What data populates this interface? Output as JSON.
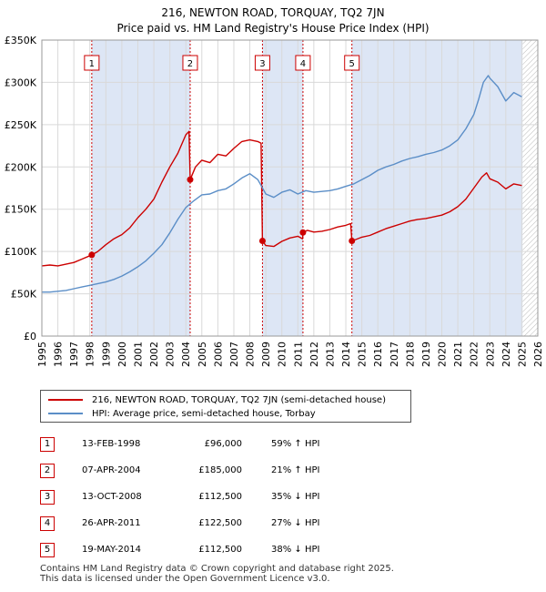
{
  "title_line1": "216, NEWTON ROAD, TORQUAY, TQ2 7JN",
  "title_line2": "Price paid vs. HM Land Registry's House Price Index (HPI)",
  "legend": {
    "series1": "216, NEWTON ROAD, TORQUAY, TQ2 7JN (semi-detached house)",
    "series2": "HPI: Average price, semi-detached house, Torbay"
  },
  "sales": [
    {
      "num": "1",
      "date": "13-FEB-1998",
      "price": "£96,000",
      "hpi": "59% ↑ HPI"
    },
    {
      "num": "2",
      "date": "07-APR-2004",
      "price": "£185,000",
      "hpi": "21% ↑ HPI"
    },
    {
      "num": "3",
      "date": "13-OCT-2008",
      "price": "£112,500",
      "hpi": "35% ↓ HPI"
    },
    {
      "num": "4",
      "date": "26-APR-2011",
      "price": "£122,500",
      "hpi": "27% ↓ HPI"
    },
    {
      "num": "5",
      "date": "19-MAY-2014",
      "price": "£112,500",
      "hpi": "38% ↓ HPI"
    }
  ],
  "footer_line1": "Contains HM Land Registry data © Crown copyright and database right 2025.",
  "footer_line2": "This data is licensed under the Open Government Licence v3.0.",
  "colors": {
    "property_line": "#cc0000",
    "hpi_line": "#5b8ec7",
    "shade": "#dde6f5",
    "grid": "#d9d9d9",
    "marker_border": "#cc0000"
  },
  "chart_data": {
    "type": "line",
    "title": "216, NEWTON ROAD, TORQUAY, TQ2 7JN — Price paid vs. HM Land Registry's House Price Index (HPI)",
    "xlabel": "",
    "ylabel": "",
    "xlim": [
      1995,
      2026
    ],
    "ylim": [
      0,
      350000
    ],
    "x_ticks": [
      1995,
      1996,
      1997,
      1998,
      1999,
      2000,
      2001,
      2002,
      2003,
      2004,
      2005,
      2006,
      2007,
      2008,
      2009,
      2010,
      2011,
      2012,
      2013,
      2014,
      2015,
      2016,
      2017,
      2018,
      2019,
      2020,
      2021,
      2022,
      2023,
      2024,
      2025,
      2026
    ],
    "y_ticks": [
      0,
      50000,
      100000,
      150000,
      200000,
      250000,
      300000,
      350000
    ],
    "y_tick_labels": [
      "£0",
      "£50K",
      "£100K",
      "£150K",
      "£200K",
      "£250K",
      "£300K",
      "£350K"
    ],
    "grid": true,
    "legend_position": "below",
    "shaded_regions": [
      [
        1998.12,
        2004.27
      ],
      [
        2008.79,
        2011.32
      ],
      [
        2014.38,
        2025.05
      ]
    ],
    "future_hatch_from": 2025.05,
    "sale_markers": [
      {
        "label": "1",
        "x": 1998.12,
        "y": 96000
      },
      {
        "label": "2",
        "x": 2004.27,
        "y": 185000
      },
      {
        "label": "3",
        "x": 2008.79,
        "y": 112500
      },
      {
        "label": "4",
        "x": 2011.32,
        "y": 122500
      },
      {
        "label": "5",
        "x": 2014.38,
        "y": 112500
      }
    ],
    "series": [
      {
        "name": "216, NEWTON ROAD, TORQUAY, TQ2 7JN (semi-detached house)",
        "x": [
          1995.0,
          1995.5,
          1996.0,
          1996.5,
          1997.0,
          1997.5,
          1998.0,
          1998.12,
          1998.5,
          1999.0,
          1999.5,
          2000.0,
          2000.5,
          2001.0,
          2001.5,
          2002.0,
          2002.5,
          2003.0,
          2003.5,
          2004.0,
          2004.2,
          2004.27,
          2004.6,
          2005.0,
          2005.5,
          2006.0,
          2006.5,
          2007.0,
          2007.5,
          2008.0,
          2008.5,
          2008.7,
          2008.79,
          2009.0,
          2009.5,
          2010.0,
          2010.5,
          2011.0,
          2011.3,
          2011.32,
          2011.6,
          2012.0,
          2012.5,
          2013.0,
          2013.5,
          2014.0,
          2014.3,
          2014.38,
          2014.6,
          2015.0,
          2015.5,
          2016.0,
          2016.5,
          2017.0,
          2017.5,
          2018.0,
          2018.5,
          2019.0,
          2019.5,
          2020.0,
          2020.5,
          2021.0,
          2021.5,
          2022.0,
          2022.5,
          2022.8,
          2023.0,
          2023.5,
          2024.0,
          2024.5,
          2025.0
        ],
        "y": [
          83000,
          84000,
          83000,
          85000,
          87000,
          91000,
          95000,
          96000,
          100000,
          108000,
          115000,
          120000,
          128000,
          140000,
          150000,
          162000,
          182000,
          200000,
          216000,
          238000,
          242000,
          185000,
          200000,
          208000,
          205000,
          215000,
          213000,
          222000,
          230000,
          232000,
          230000,
          228000,
          112500,
          107000,
          106000,
          112000,
          116000,
          118000,
          115000,
          122500,
          125000,
          123000,
          124000,
          126000,
          129000,
          131000,
          133000,
          112500,
          114000,
          117000,
          119000,
          123000,
          127000,
          130000,
          133000,
          136000,
          138000,
          139000,
          141000,
          143000,
          147000,
          153000,
          162000,
          175000,
          188000,
          193000,
          186000,
          182000,
          174000,
          180000,
          178000
        ]
      },
      {
        "name": "HPI: Average price, semi-detached house, Torbay",
        "x": [
          1995.0,
          1995.5,
          1996.0,
          1996.5,
          1997.0,
          1997.5,
          1998.0,
          1998.5,
          1999.0,
          1999.5,
          2000.0,
          2000.5,
          2001.0,
          2001.5,
          2002.0,
          2002.5,
          2003.0,
          2003.5,
          2004.0,
          2004.5,
          2005.0,
          2005.5,
          2006.0,
          2006.5,
          2007.0,
          2007.5,
          2008.0,
          2008.5,
          2009.0,
          2009.5,
          2010.0,
          2010.5,
          2011.0,
          2011.5,
          2012.0,
          2012.5,
          2013.0,
          2013.5,
          2014.0,
          2014.5,
          2015.0,
          2015.5,
          2016.0,
          2016.5,
          2017.0,
          2017.5,
          2018.0,
          2018.5,
          2019.0,
          2019.5,
          2020.0,
          2020.5,
          2021.0,
          2021.5,
          2022.0,
          2022.3,
          2022.6,
          2022.9,
          2023.0,
          2023.5,
          2024.0,
          2024.5,
          2025.0
        ],
        "y": [
          52000,
          52000,
          53000,
          54000,
          56000,
          58000,
          60000,
          62000,
          64000,
          67000,
          71000,
          76000,
          82000,
          89000,
          98000,
          108000,
          122000,
          138000,
          152000,
          160000,
          167000,
          168000,
          172000,
          174000,
          180000,
          187000,
          192000,
          185000,
          168000,
          164000,
          170000,
          173000,
          168000,
          172000,
          170000,
          171000,
          172000,
          174000,
          177000,
          180000,
          185000,
          190000,
          196000,
          200000,
          203000,
          207000,
          210000,
          212000,
          215000,
          217000,
          220000,
          225000,
          232000,
          245000,
          262000,
          280000,
          300000,
          308000,
          305000,
          295000,
          278000,
          288000,
          283000
        ]
      }
    ]
  }
}
